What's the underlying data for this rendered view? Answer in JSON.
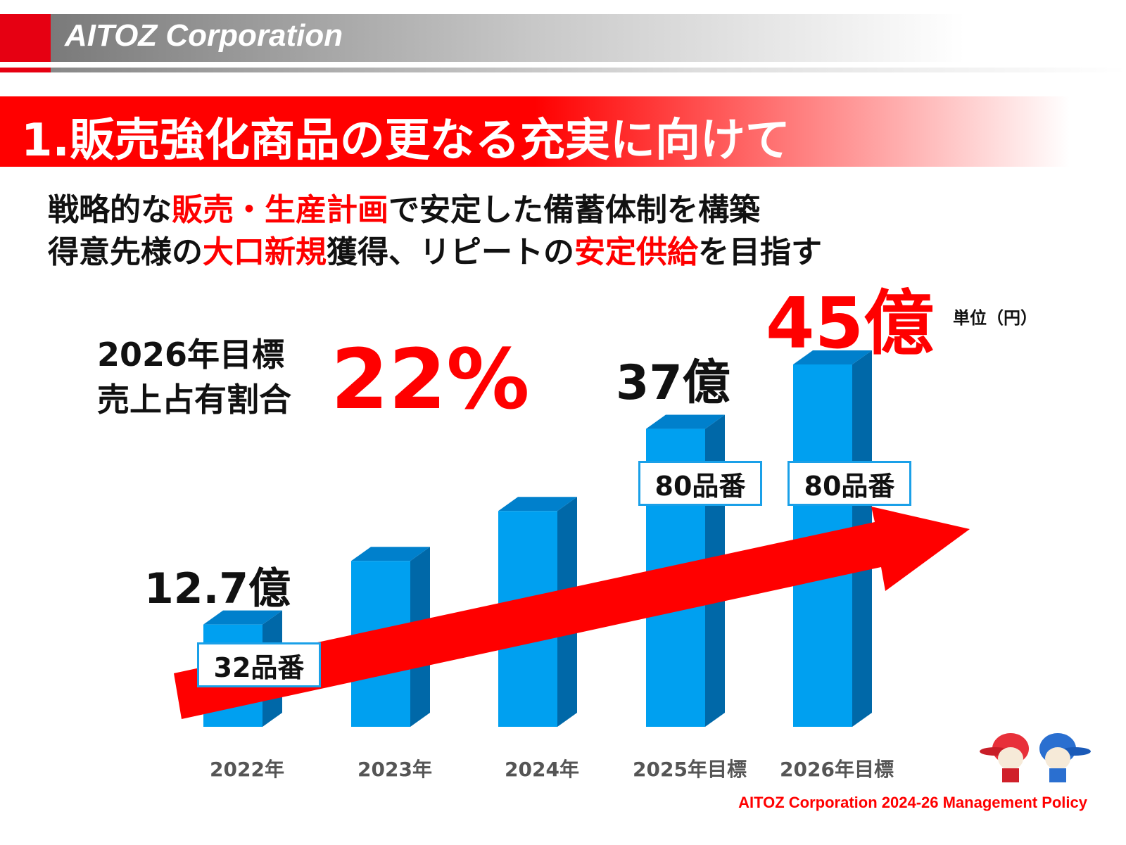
{
  "header": {
    "brand": "AITOZ Corporation"
  },
  "title": "1.販売強化商品の更なる充実に向けて",
  "subtitle_lines": [
    [
      {
        "t": "戦略的な",
        "red": false
      },
      {
        "t": "販売・生産計画",
        "red": true
      },
      {
        "t": "で安定した備蓄体制を構築",
        "red": false
      }
    ],
    [
      {
        "t": "得意先様の",
        "red": false
      },
      {
        "t": "大口新規",
        "red": true
      },
      {
        "t": "獲得、リピートの",
        "red": false
      },
      {
        "t": "安定供給",
        "red": true
      },
      {
        "t": "を目指す",
        "red": false
      }
    ]
  ],
  "target": {
    "line1": "2026年目標",
    "line2": "売上占有割合",
    "percent": "22%"
  },
  "unit": "単位（円）",
  "footer": "AITOZ Corporation 2024-26 Management Policy",
  "colors": {
    "bar_front": "#00a0f0",
    "bar_side": "#0068a8",
    "bar_top": "#0080cc",
    "arrow": "#ff0000",
    "accent": "#e60012"
  },
  "chart_data": {
    "type": "bar",
    "categories": [
      "2022年",
      "2023年",
      "2024年",
      "2025年目標",
      "2026年目標"
    ],
    "values": [
      12.7,
      20.6,
      26.8,
      37,
      45
    ],
    "data_labels": [
      "12.7億",
      "",
      "",
      "37億",
      "45億"
    ],
    "item_counts": [
      "32品番",
      "",
      "",
      "80品番",
      "80品番"
    ],
    "ylim": [
      0,
      45
    ],
    "style": "3d",
    "grid": false,
    "trend_arrow": true
  }
}
